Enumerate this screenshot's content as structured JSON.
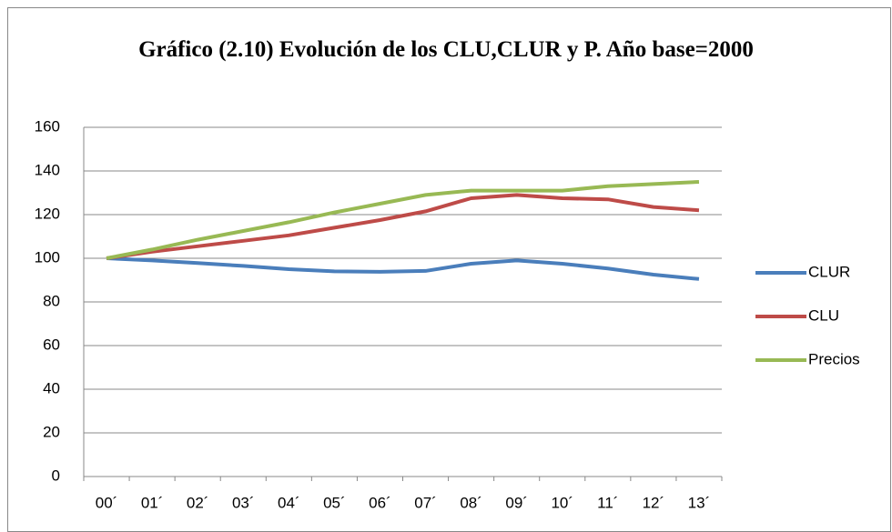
{
  "chart_data": {
    "type": "line",
    "title": "Gráfico (2.10) Evolución de los CLU,CLUR y P. Año base=2000",
    "categories": [
      "00´",
      "01´",
      "02´",
      "03´",
      "04´",
      "05´",
      "06´",
      "07´",
      "08´",
      "09´",
      "10´",
      "11´",
      "12´",
      "13´"
    ],
    "series": [
      {
        "name": "CLUR",
        "color": "#4a7ebb",
        "values": [
          100,
          99,
          97.8,
          96.5,
          95,
          94,
          93.8,
          94.2,
          97.5,
          99,
          97.5,
          95.3,
          92.5,
          90.5
        ]
      },
      {
        "name": "CLU",
        "color": "#be4b48",
        "values": [
          100,
          103,
          105.5,
          108,
          110.5,
          114,
          117.5,
          121.5,
          127.5,
          129,
          127.5,
          127,
          123.5,
          122
        ]
      },
      {
        "name": "Precios",
        "color": "#98b954",
        "values": [
          100,
          104,
          108.5,
          112.5,
          116.5,
          121,
          125,
          129,
          131,
          131,
          131,
          133,
          134,
          135
        ]
      }
    ],
    "ylim": [
      0,
      160
    ],
    "yticks": [
      0,
      20,
      40,
      60,
      80,
      100,
      120,
      140,
      160
    ],
    "grid": true,
    "legend": "right"
  }
}
